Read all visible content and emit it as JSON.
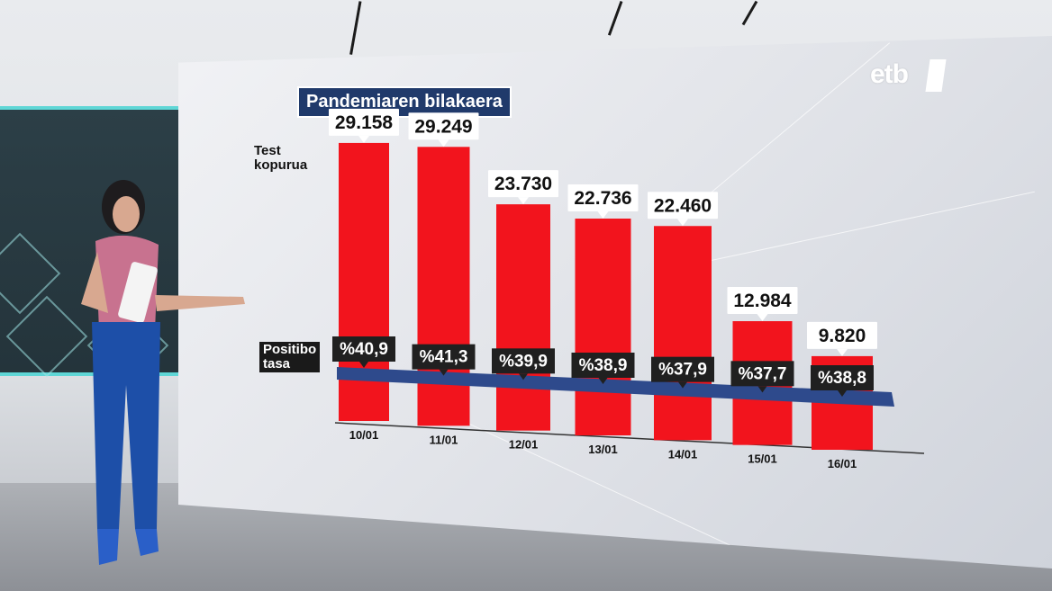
{
  "broadcaster": {
    "logo_text": "etb"
  },
  "title": "Pandemiaren bilakaera",
  "row_labels": {
    "tests_line1": "Test",
    "tests_line2": "kopurua",
    "positive_line1": "Positibo",
    "positive_line2": "tasa"
  },
  "colors": {
    "bar": "#f2141d",
    "rate_band": "#2e4a8c",
    "rate_label_bg": "#202020",
    "title_bg": "#203a6b"
  },
  "chart_data": {
    "type": "bar",
    "title": "Pandemiaren bilakaera",
    "categories": [
      "10/01",
      "11/01",
      "12/01",
      "13/01",
      "14/01",
      "15/01",
      "16/01"
    ],
    "series": [
      {
        "name": "Test kopurua",
        "values": [
          29158,
          29249,
          23730,
          22736,
          22460,
          12984,
          9820
        ],
        "labels": [
          "29.158",
          "29.249",
          "23.730",
          "22.736",
          "22.460",
          "12.984",
          "9.820"
        ]
      },
      {
        "name": "Positibo tasa",
        "values": [
          40.9,
          41.3,
          39.9,
          38.9,
          37.9,
          37.7,
          38.8
        ],
        "labels": [
          "%40,9",
          "%41,3",
          "%39,9",
          "%38,9",
          "%37,9",
          "%37,7",
          "%38,8"
        ]
      }
    ],
    "ylim": [
      0,
      30000
    ],
    "grid": false,
    "legend": "none"
  }
}
